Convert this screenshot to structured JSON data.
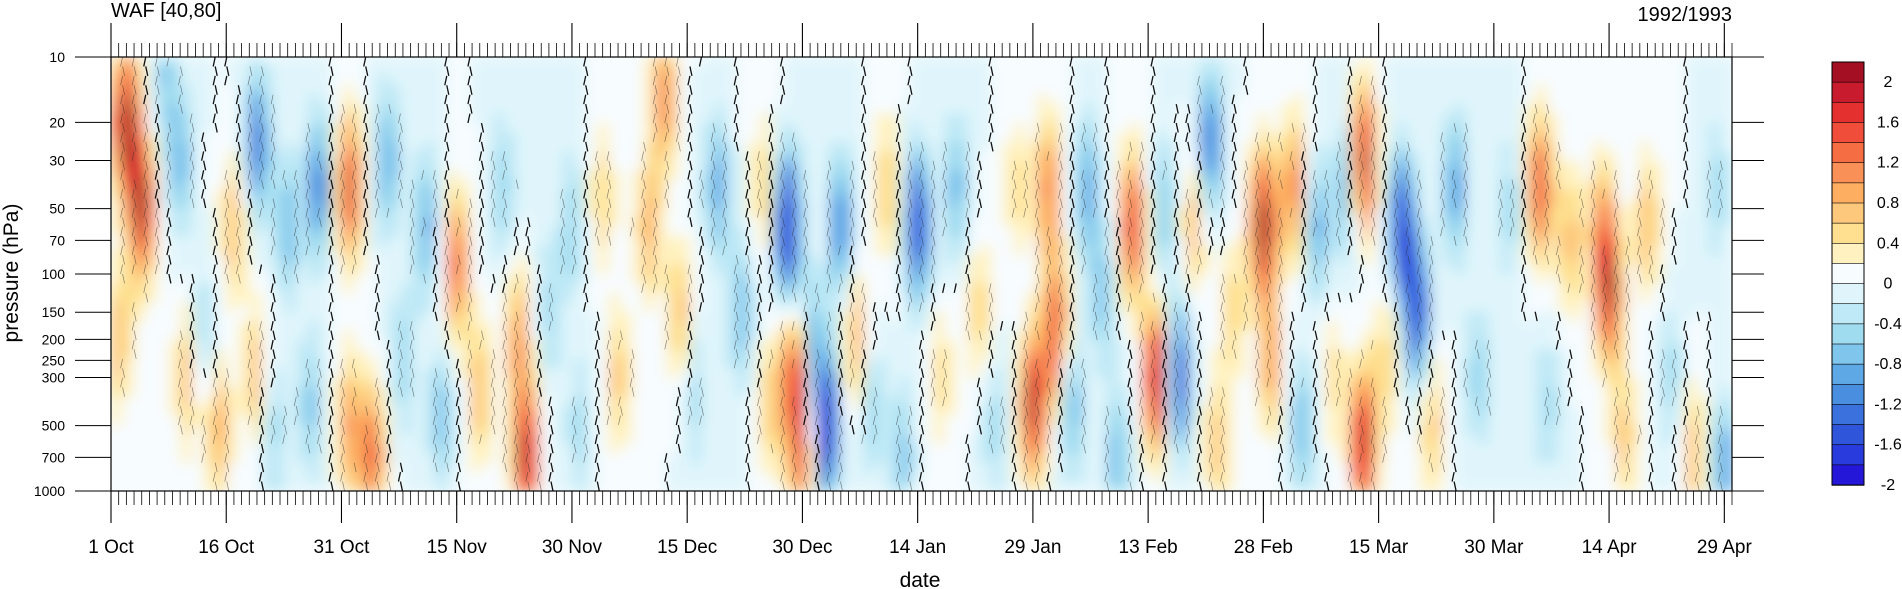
{
  "chart_data": {
    "type": "heatmap",
    "title_left": "WAF [40,80]",
    "title_right": "1992/1993",
    "xlabel": "date",
    "ylabel": "pressure (hPa)",
    "x_ticks": [
      "1 Oct",
      "16 Oct",
      "31 Oct",
      "15 Nov",
      "30 Nov",
      "15 Dec",
      "30 Dec",
      "14 Jan",
      "29 Jan",
      "13 Feb",
      "28 Feb",
      "15 Mar",
      "30 Mar",
      "14 Apr",
      "29 Apr"
    ],
    "x_tick_days": [
      0,
      15,
      30,
      45,
      60,
      75,
      90,
      105,
      120,
      135,
      150,
      165,
      180,
      195,
      210
    ],
    "xlim_days": [
      0,
      211
    ],
    "y_ticks": [
      10,
      20,
      30,
      50,
      70,
      100,
      150,
      200,
      250,
      300,
      500,
      700,
      1000
    ],
    "y_scale": "log",
    "ylim": [
      1000,
      10
    ],
    "colorbar": {
      "labels": [
        "2",
        "1.6",
        "1.2",
        "0.8",
        "0.4",
        "0",
        "-0.4",
        "-0.8",
        "-1.2",
        "-1.6",
        "-2"
      ],
      "levels": [
        2.2,
        2.0,
        1.8,
        1.6,
        1.4,
        1.2,
        1.0,
        0.8,
        0.6,
        0.4,
        0.2,
        0.0,
        -0.2,
        -0.4,
        -0.6,
        -0.8,
        -1.0,
        -1.2,
        -1.4,
        -1.6,
        -1.8,
        -2.0,
        -2.2
      ],
      "colors": [
        "#a50f23",
        "#c81b2d",
        "#e4302e",
        "#f04e3a",
        "#f46d43",
        "#f89058",
        "#fdae61",
        "#fdc77c",
        "#fee090",
        "#fff2c0",
        "#f7fcff",
        "#e0f5fb",
        "#bfe9f6",
        "#a0dcf0",
        "#80c6ec",
        "#5fa8e6",
        "#4a8ee0",
        "#3b71dc",
        "#2f55da",
        "#2a3bdd",
        "#2517d8"
      ]
    },
    "anomalies": [
      {
        "day": 2,
        "p": 20,
        "v": 2.2
      },
      {
        "day": 4,
        "p": 50,
        "v": 2.0
      },
      {
        "day": 1,
        "p": 200,
        "v": 0.8
      },
      {
        "day": 7,
        "p": 12,
        "v": -0.6
      },
      {
        "day": 9,
        "p": 30,
        "v": -0.8
      },
      {
        "day": 10,
        "p": 300,
        "v": 0.8
      },
      {
        "day": 12,
        "p": 200,
        "v": -0.6
      },
      {
        "day": 14,
        "p": 500,
        "v": 0.9
      },
      {
        "day": 16,
        "p": 60,
        "v": 0.8
      },
      {
        "day": 19,
        "p": 25,
        "v": -1.3
      },
      {
        "day": 19,
        "p": 300,
        "v": 0.8
      },
      {
        "day": 21,
        "p": 500,
        "v": -0.6
      },
      {
        "day": 23,
        "p": 60,
        "v": -0.8
      },
      {
        "day": 26,
        "p": 400,
        "v": -0.7
      },
      {
        "day": 27,
        "p": 40,
        "v": -1.2
      },
      {
        "day": 31,
        "p": 40,
        "v": 1.7
      },
      {
        "day": 31,
        "p": 500,
        "v": 1.0
      },
      {
        "day": 34,
        "p": 700,
        "v": 1.4
      },
      {
        "day": 36,
        "p": 30,
        "v": -0.9
      },
      {
        "day": 38,
        "p": 250,
        "v": -0.6
      },
      {
        "day": 41,
        "p": 60,
        "v": -0.9
      },
      {
        "day": 45,
        "p": 90,
        "v": 1.4
      },
      {
        "day": 43,
        "p": 450,
        "v": -0.7
      },
      {
        "day": 48,
        "p": 350,
        "v": 0.8
      },
      {
        "day": 51,
        "p": 40,
        "v": -0.6
      },
      {
        "day": 53,
        "p": 200,
        "v": 1.0
      },
      {
        "day": 54,
        "p": 700,
        "v": 2.0
      },
      {
        "day": 57,
        "p": 150,
        "v": -0.5
      },
      {
        "day": 60,
        "p": 60,
        "v": -0.6
      },
      {
        "day": 61,
        "p": 500,
        "v": -0.5
      },
      {
        "day": 64,
        "p": 45,
        "v": 0.6
      },
      {
        "day": 66,
        "p": 300,
        "v": 0.7
      },
      {
        "day": 70,
        "p": 60,
        "v": 0.9
      },
      {
        "day": 72,
        "p": 15,
        "v": 1.2
      },
      {
        "day": 74,
        "p": 150,
        "v": 0.8
      },
      {
        "day": 76,
        "p": 350,
        "v": -0.5
      },
      {
        "day": 79,
        "p": 40,
        "v": -0.9
      },
      {
        "day": 82,
        "p": 150,
        "v": -0.8
      },
      {
        "day": 85,
        "p": 40,
        "v": 0.6
      },
      {
        "day": 86,
        "p": 400,
        "v": 0.7
      },
      {
        "day": 88,
        "p": 60,
        "v": -2.2
      },
      {
        "day": 89,
        "p": 300,
        "v": 1.6
      },
      {
        "day": 90,
        "p": 700,
        "v": 1.3
      },
      {
        "day": 91,
        "p": 200,
        "v": -0.8
      },
      {
        "day": 93,
        "p": 500,
        "v": -2.1
      },
      {
        "day": 95,
        "p": 60,
        "v": -1.2
      },
      {
        "day": 97,
        "p": 200,
        "v": 0.9
      },
      {
        "day": 99,
        "p": 400,
        "v": -0.6
      },
      {
        "day": 101,
        "p": 40,
        "v": 0.7
      },
      {
        "day": 103,
        "p": 700,
        "v": -0.7
      },
      {
        "day": 105,
        "p": 60,
        "v": -1.8
      },
      {
        "day": 108,
        "p": 300,
        "v": 0.5
      },
      {
        "day": 110,
        "p": 40,
        "v": -0.8
      },
      {
        "day": 113,
        "p": 150,
        "v": 0.6
      },
      {
        "day": 115,
        "p": 500,
        "v": -0.5
      },
      {
        "day": 118,
        "p": 40,
        "v": 0.5
      },
      {
        "day": 120,
        "p": 400,
        "v": 2.0
      },
      {
        "day": 122,
        "p": 40,
        "v": 1.2
      },
      {
        "day": 123,
        "p": 180,
        "v": 1.6
      },
      {
        "day": 125,
        "p": 400,
        "v": -0.9
      },
      {
        "day": 127,
        "p": 40,
        "v": -0.9
      },
      {
        "day": 129,
        "p": 120,
        "v": -0.7
      },
      {
        "day": 131,
        "p": 700,
        "v": -0.8
      },
      {
        "day": 133,
        "p": 60,
        "v": 1.7
      },
      {
        "day": 136,
        "p": 300,
        "v": 2.0
      },
      {
        "day": 137,
        "p": 50,
        "v": -0.7
      },
      {
        "day": 139,
        "p": 300,
        "v": -1.6
      },
      {
        "day": 141,
        "p": 60,
        "v": 0.8
      },
      {
        "day": 143,
        "p": 25,
        "v": -1.3
      },
      {
        "day": 144,
        "p": 600,
        "v": 0.7
      },
      {
        "day": 146,
        "p": 150,
        "v": 0.6
      },
      {
        "day": 150,
        "p": 60,
        "v": 2.2
      },
      {
        "day": 151,
        "p": 250,
        "v": 1.0
      },
      {
        "day": 154,
        "p": 40,
        "v": 1.2
      },
      {
        "day": 155,
        "p": 500,
        "v": -0.8
      },
      {
        "day": 157,
        "p": 60,
        "v": -0.9
      },
      {
        "day": 159,
        "p": 300,
        "v": 0.5
      },
      {
        "day": 161,
        "p": 40,
        "v": -0.9
      },
      {
        "day": 163,
        "p": 30,
        "v": 2.1
      },
      {
        "day": 163,
        "p": 600,
        "v": 2.0
      },
      {
        "day": 166,
        "p": 250,
        "v": 0.6
      },
      {
        "day": 168,
        "p": 60,
        "v": -1.8
      },
      {
        "day": 170,
        "p": 150,
        "v": -1.7
      },
      {
        "day": 172,
        "p": 500,
        "v": 0.7
      },
      {
        "day": 175,
        "p": 40,
        "v": -1.0
      },
      {
        "day": 178,
        "p": 300,
        "v": -0.6
      },
      {
        "day": 182,
        "p": 50,
        "v": -0.5
      },
      {
        "day": 186,
        "p": 40,
        "v": 1.6
      },
      {
        "day": 187,
        "p": 400,
        "v": -0.5
      },
      {
        "day": 190,
        "p": 70,
        "v": 0.8
      },
      {
        "day": 194,
        "p": 60,
        "v": 0.9
      },
      {
        "day": 195,
        "p": 120,
        "v": 1.8
      },
      {
        "day": 197,
        "p": 550,
        "v": 0.7
      },
      {
        "day": 200,
        "p": 60,
        "v": 0.8
      },
      {
        "day": 203,
        "p": 300,
        "v": -0.5
      },
      {
        "day": 206,
        "p": 700,
        "v": 0.8
      },
      {
        "day": 209,
        "p": 40,
        "v": -0.5
      },
      {
        "day": 210,
        "p": 800,
        "v": -1.0
      }
    ]
  }
}
